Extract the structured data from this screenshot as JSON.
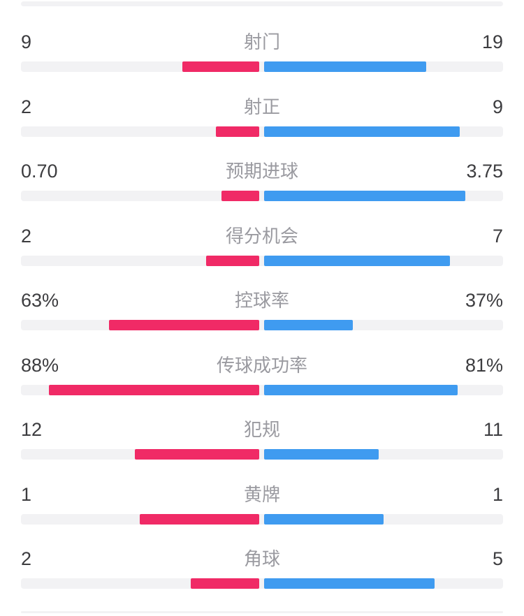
{
  "colors": {
    "background": "#ffffff",
    "home": "#f02a66",
    "away": "#3f9bf0",
    "track": "#f2f2f4",
    "value_text": "#3c3c3f",
    "label_text": "#9a9aa0"
  },
  "rows": [
    {
      "label": "射门",
      "home": "9",
      "away": "19"
    },
    {
      "label": "射正",
      "home": "2",
      "away": "9"
    },
    {
      "label": "预期进球",
      "home": "0.70",
      "away": "3.75"
    },
    {
      "label": "得分机会",
      "home": "2",
      "away": "7"
    },
    {
      "label": "控球率",
      "home": "63%",
      "away": "37%"
    },
    {
      "label": "传球成功率",
      "home": "88%",
      "away": "81%"
    },
    {
      "label": "犯规",
      "home": "12",
      "away": "11"
    },
    {
      "label": "黄牌",
      "home": "1",
      "away": "1"
    },
    {
      "label": "角球",
      "home": "2",
      "away": "5"
    }
  ],
  "chart_data": {
    "type": "bar",
    "subtype": "paired-horizontal-comparison",
    "title": "",
    "categories": [
      "射门",
      "射正",
      "预期进球",
      "得分机会",
      "控球率",
      "传球成功率",
      "犯规",
      "黄牌",
      "角球"
    ],
    "series": [
      {
        "name": "left-team",
        "color": "#f02a66",
        "values": [
          9,
          2,
          0.7,
          2,
          63,
          88,
          12,
          1,
          2
        ]
      },
      {
        "name": "right-team",
        "color": "#3f9bf0",
        "values": [
          19,
          9,
          3.75,
          7,
          37,
          81,
          11,
          1,
          5
        ]
      }
    ],
    "value_format": [
      "int",
      "int",
      "decimal2",
      "int",
      "percent",
      "percent",
      "int",
      "int",
      "int"
    ],
    "bar_scaling": "percent rows: width = value/100 of half-track; count rows: width = value/(left+right) of half-track; bars grow outward from center gap",
    "legend_position": "none",
    "grid": false
  }
}
